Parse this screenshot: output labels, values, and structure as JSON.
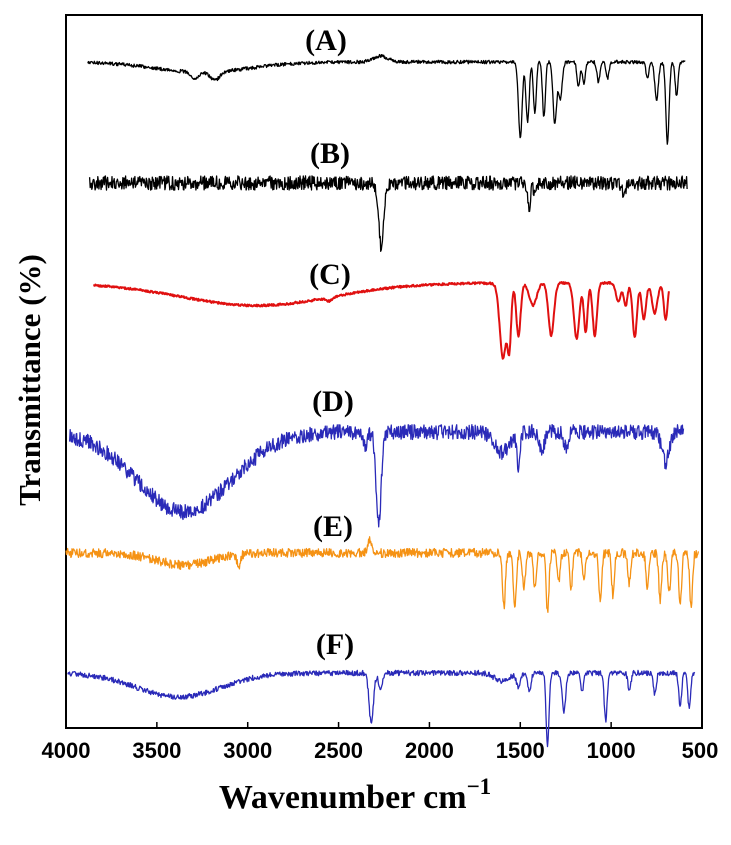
{
  "chart_data": {
    "type": "line",
    "xlabel": "Wavenumber cm",
    "xlabel_superscript": "−1",
    "ylabel": "Transmittance (%)",
    "xlim": [
      4000,
      500
    ],
    "x_ticks": [
      4000,
      3500,
      3000,
      2500,
      2000,
      1500,
      1000,
      500
    ],
    "y_ticks_shown": false,
    "grid": false,
    "legend": "none",
    "series": [
      {
        "name": "(A)",
        "color": "#000000",
        "range": [
          3880,
          590
        ],
        "baseline": 0.0,
        "noise": 0.1,
        "features": [
          {
            "c": 3250,
            "w": 260,
            "d": 0.6
          },
          {
            "c": 3180,
            "w": 25,
            "d": 0.5
          },
          {
            "c": 3290,
            "w": 20,
            "d": 0.4
          },
          {
            "c": 2270,
            "w": 40,
            "d": -0.35
          },
          {
            "c": 1500,
            "w": 10,
            "d": 4.5
          },
          {
            "c": 1460,
            "w": 9,
            "d": 3.5
          },
          {
            "c": 1420,
            "w": 8,
            "d": 3.0
          },
          {
            "c": 1370,
            "w": 8,
            "d": 3.2
          },
          {
            "c": 1310,
            "w": 10,
            "d": 3.6
          },
          {
            "c": 1280,
            "w": 10,
            "d": 2.2
          },
          {
            "c": 1180,
            "w": 8,
            "d": 1.5
          },
          {
            "c": 1150,
            "w": 8,
            "d": 1.3
          },
          {
            "c": 1070,
            "w": 8,
            "d": 1.2
          },
          {
            "c": 1020,
            "w": 8,
            "d": 1.0
          },
          {
            "c": 800,
            "w": 8,
            "d": 1.0
          },
          {
            "c": 750,
            "w": 10,
            "d": 2.2
          },
          {
            "c": 690,
            "w": 9,
            "d": 4.8
          },
          {
            "c": 640,
            "w": 8,
            "d": 2.0
          }
        ]
      },
      {
        "name": "(B)",
        "color": "#000000",
        "range": [
          3870,
          580
        ],
        "baseline": 0.0,
        "noise": 0.55,
        "features": [
          {
            "c": 2265,
            "w": 14,
            "d": 5.0
          },
          {
            "c": 1450,
            "w": 8,
            "d": 1.8
          },
          {
            "c": 1420,
            "w": 6,
            "d": 1.1
          },
          {
            "c": 930,
            "w": 8,
            "d": 1.2
          }
        ]
      },
      {
        "name": "(C)",
        "color": "#e01010",
        "range": [
          3850,
          680
        ],
        "baseline": 0.0,
        "noise": 0.07,
        "features": [
          {
            "c": 2950,
            "w": 420,
            "d": 1.5
          },
          {
            "c": 2550,
            "w": 20,
            "d": 0.25
          },
          {
            "c": 1595,
            "w": 18,
            "d": 5.0
          },
          {
            "c": 1560,
            "w": 10,
            "d": 4.0
          },
          {
            "c": 1510,
            "w": 12,
            "d": 3.5
          },
          {
            "c": 1430,
            "w": 20,
            "d": 1.5
          },
          {
            "c": 1330,
            "w": 15,
            "d": 3.5
          },
          {
            "c": 1190,
            "w": 15,
            "d": 3.7
          },
          {
            "c": 1140,
            "w": 10,
            "d": 3.3
          },
          {
            "c": 1090,
            "w": 12,
            "d": 3.5
          },
          {
            "c": 960,
            "w": 14,
            "d": 1.2
          },
          {
            "c": 920,
            "w": 10,
            "d": 1.5
          },
          {
            "c": 870,
            "w": 12,
            "d": 3.6
          },
          {
            "c": 820,
            "w": 12,
            "d": 2.4
          },
          {
            "c": 760,
            "w": 15,
            "d": 2.0
          },
          {
            "c": 700,
            "w": 10,
            "d": 2.5
          }
        ]
      },
      {
        "name": "(D)",
        "color": "#2a2ab8",
        "range": [
          3980,
          600
        ],
        "baseline": 0.0,
        "noise": 0.38,
        "features": [
          {
            "c": 3350,
            "w": 260,
            "d": 4.0
          },
          {
            "c": 2280,
            "w": 14,
            "d": 4.6
          },
          {
            "c": 2350,
            "w": 10,
            "d": 0.8
          },
          {
            "c": 1600,
            "w": 40,
            "d": 1.0
          },
          {
            "c": 1510,
            "w": 10,
            "d": 1.6
          },
          {
            "c": 1380,
            "w": 12,
            "d": 1.0
          },
          {
            "c": 1250,
            "w": 12,
            "d": 0.8
          },
          {
            "c": 700,
            "w": 20,
            "d": 1.5
          }
        ]
      },
      {
        "name": "(E)",
        "color": "#f59214",
        "range": [
          4000,
          520
        ],
        "baseline": 0.0,
        "noise": 0.38,
        "features": [
          {
            "c": 3350,
            "w": 150,
            "d": 1.0
          },
          {
            "c": 3050,
            "w": 10,
            "d": 1.0
          },
          {
            "c": 2330,
            "w": 12,
            "d": -1.0
          },
          {
            "c": 1590,
            "w": 8,
            "d": 4.5
          },
          {
            "c": 1530,
            "w": 8,
            "d": 4.6
          },
          {
            "c": 1480,
            "w": 8,
            "d": 3.0
          },
          {
            "c": 1420,
            "w": 8,
            "d": 2.8
          },
          {
            "c": 1350,
            "w": 8,
            "d": 4.8
          },
          {
            "c": 1290,
            "w": 8,
            "d": 2.5
          },
          {
            "c": 1220,
            "w": 8,
            "d": 2.8
          },
          {
            "c": 1150,
            "w": 8,
            "d": 2.0
          },
          {
            "c": 1060,
            "w": 8,
            "d": 4.0
          },
          {
            "c": 990,
            "w": 8,
            "d": 3.5
          },
          {
            "c": 900,
            "w": 8,
            "d": 2.5
          },
          {
            "c": 800,
            "w": 8,
            "d": 3.0
          },
          {
            "c": 730,
            "w": 8,
            "d": 4.0
          },
          {
            "c": 680,
            "w": 8,
            "d": 3.2
          },
          {
            "c": 620,
            "w": 8,
            "d": 4.2
          },
          {
            "c": 560,
            "w": 8,
            "d": 4.5
          }
        ]
      },
      {
        "name": "(F)",
        "color": "#2a2ab8",
        "range": [
          3990,
          540
        ],
        "baseline": 0.0,
        "noise": 0.22,
        "features": [
          {
            "c": 3380,
            "w": 230,
            "d": 2.0
          },
          {
            "c": 2320,
            "w": 12,
            "d": 4.2
          },
          {
            "c": 2270,
            "w": 10,
            "d": 1.5
          },
          {
            "c": 1600,
            "w": 40,
            "d": 0.7
          },
          {
            "c": 1510,
            "w": 10,
            "d": 1.2
          },
          {
            "c": 1450,
            "w": 9,
            "d": 1.5
          },
          {
            "c": 1350,
            "w": 8,
            "d": 6.0
          },
          {
            "c": 1260,
            "w": 10,
            "d": 3.2
          },
          {
            "c": 1160,
            "w": 8,
            "d": 1.5
          },
          {
            "c": 1030,
            "w": 8,
            "d": 4.0
          },
          {
            "c": 900,
            "w": 8,
            "d": 1.5
          },
          {
            "c": 760,
            "w": 8,
            "d": 1.8
          },
          {
            "c": 620,
            "w": 8,
            "d": 2.8
          },
          {
            "c": 570,
            "w": 8,
            "d": 3.0
          }
        ]
      }
    ]
  }
}
